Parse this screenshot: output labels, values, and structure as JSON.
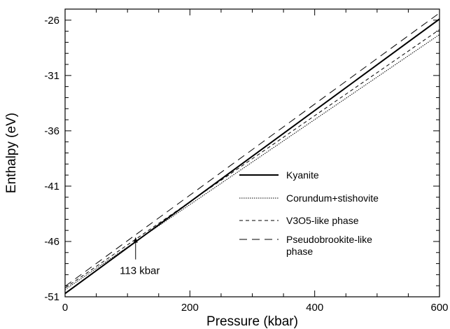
{
  "chart_data": {
    "type": "line",
    "title": "",
    "xlabel": "Pressure (kbar)",
    "ylabel": "Enthalpy (eV)",
    "xlim": [
      0,
      600
    ],
    "ylim": [
      -51,
      -25
    ],
    "xticks": [
      0,
      200,
      400,
      600
    ],
    "yticks": [
      -51,
      -46,
      -41,
      -36,
      -31,
      -26
    ],
    "x_minor_step": 50,
    "y_minor_step": 1,
    "grid": false,
    "legend_position": "center-right",
    "series": [
      {
        "name": "Kyanite",
        "x": [
          0,
          600
        ],
        "y": [
          -50.7,
          -25.9
        ],
        "style": "solid-thick"
      },
      {
        "name": "Corundum+stishovite",
        "x": [
          0,
          600
        ],
        "y": [
          -50.35,
          -27.3
        ],
        "style": "dotted"
      },
      {
        "name": "V3O5-like phase",
        "x": [
          0,
          600
        ],
        "y": [
          -50.2,
          -26.85
        ],
        "style": "short-dash"
      },
      {
        "name": "Pseudobrookite-like phase",
        "x": [
          0,
          600
        ],
        "y": [
          -50.05,
          -25.35
        ],
        "style": "long-dash"
      }
    ],
    "legend_lines": [
      [
        "Kyanite"
      ],
      [
        "Corundum+stishovite"
      ],
      [
        "V3O5-like phase"
      ],
      [
        "Pseudobrookite-like",
        "phase"
      ]
    ],
    "annotations": [
      {
        "text": "113 kbar",
        "x": 113,
        "y": -45.6,
        "arrow": true
      }
    ]
  }
}
